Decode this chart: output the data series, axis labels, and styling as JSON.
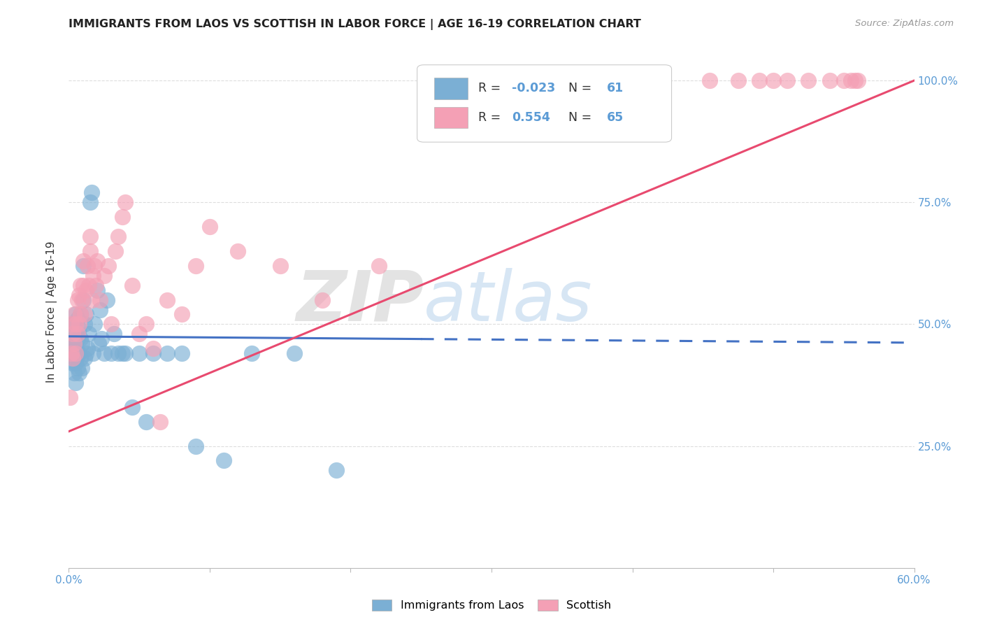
{
  "title": "IMMIGRANTS FROM LAOS VS SCOTTISH IN LABOR FORCE | AGE 16-19 CORRELATION CHART",
  "source": "Source: ZipAtlas.com",
  "ylabel": "In Labor Force | Age 16-19",
  "xlim": [
    0.0,
    0.6
  ],
  "ylim": [
    0.0,
    1.05
  ],
  "xtick_labels": [
    "0.0%",
    "",
    "",
    "",
    "",
    "",
    "60.0%"
  ],
  "xtick_values": [
    0.0,
    0.1,
    0.2,
    0.3,
    0.4,
    0.5,
    0.6
  ],
  "ytick_labels": [
    "25.0%",
    "50.0%",
    "75.0%",
    "100.0%"
  ],
  "ytick_values": [
    0.25,
    0.5,
    0.75,
    1.0
  ],
  "blue_color": "#7bafd4",
  "pink_color": "#f4a0b5",
  "blue_line_color": "#4472c4",
  "pink_line_color": "#e84a6f",
  "legend_R_blue": "-0.023",
  "legend_N_blue": "61",
  "legend_R_pink": "0.554",
  "legend_N_pink": "65",
  "watermark_text": "ZIPatlas",
  "background_color": "#ffffff",
  "grid_color": "#dddddd",
  "blue_scatter_x": [
    0.001,
    0.002,
    0.002,
    0.003,
    0.003,
    0.003,
    0.004,
    0.004,
    0.004,
    0.004,
    0.005,
    0.005,
    0.005,
    0.005,
    0.005,
    0.006,
    0.006,
    0.006,
    0.006,
    0.007,
    0.007,
    0.007,
    0.008,
    0.008,
    0.008,
    0.009,
    0.009,
    0.01,
    0.01,
    0.011,
    0.011,
    0.012,
    0.012,
    0.013,
    0.014,
    0.015,
    0.016,
    0.017,
    0.018,
    0.02,
    0.021,
    0.022,
    0.023,
    0.025,
    0.027,
    0.03,
    0.032,
    0.035,
    0.038,
    0.04,
    0.045,
    0.05,
    0.055,
    0.06,
    0.07,
    0.08,
    0.09,
    0.11,
    0.13,
    0.16,
    0.19
  ],
  "blue_scatter_y": [
    0.45,
    0.44,
    0.48,
    0.42,
    0.46,
    0.5,
    0.4,
    0.43,
    0.46,
    0.5,
    0.38,
    0.42,
    0.45,
    0.48,
    0.52,
    0.41,
    0.44,
    0.47,
    0.51,
    0.4,
    0.44,
    0.49,
    0.43,
    0.47,
    0.52,
    0.41,
    0.46,
    0.55,
    0.62,
    0.43,
    0.5,
    0.44,
    0.52,
    0.45,
    0.48,
    0.75,
    0.77,
    0.44,
    0.5,
    0.57,
    0.46,
    0.53,
    0.47,
    0.44,
    0.55,
    0.44,
    0.48,
    0.44,
    0.44,
    0.44,
    0.33,
    0.44,
    0.3,
    0.44,
    0.44,
    0.44,
    0.25,
    0.22,
    0.44,
    0.44,
    0.2
  ],
  "pink_scatter_x": [
    0.001,
    0.002,
    0.002,
    0.003,
    0.003,
    0.004,
    0.004,
    0.005,
    0.005,
    0.006,
    0.006,
    0.007,
    0.007,
    0.008,
    0.008,
    0.009,
    0.01,
    0.01,
    0.011,
    0.012,
    0.013,
    0.014,
    0.015,
    0.015,
    0.016,
    0.017,
    0.018,
    0.019,
    0.02,
    0.022,
    0.025,
    0.028,
    0.03,
    0.033,
    0.035,
    0.038,
    0.04,
    0.045,
    0.05,
    0.055,
    0.06,
    0.065,
    0.07,
    0.08,
    0.09,
    0.1,
    0.12,
    0.15,
    0.18,
    0.22,
    0.28,
    0.35,
    0.39,
    0.42,
    0.455,
    0.475,
    0.49,
    0.5,
    0.51,
    0.525,
    0.54,
    0.55,
    0.555,
    0.558,
    0.56
  ],
  "pink_scatter_y": [
    0.35,
    0.44,
    0.5,
    0.43,
    0.48,
    0.46,
    0.52,
    0.44,
    0.5,
    0.48,
    0.55,
    0.5,
    0.56,
    0.52,
    0.58,
    0.55,
    0.58,
    0.63,
    0.52,
    0.57,
    0.62,
    0.58,
    0.65,
    0.68,
    0.55,
    0.6,
    0.62,
    0.58,
    0.63,
    0.55,
    0.6,
    0.62,
    0.5,
    0.65,
    0.68,
    0.72,
    0.75,
    0.58,
    0.48,
    0.5,
    0.45,
    0.3,
    0.55,
    0.52,
    0.62,
    0.7,
    0.65,
    0.62,
    0.55,
    0.62,
    1.0,
    1.0,
    1.0,
    1.0,
    1.0,
    1.0,
    1.0,
    1.0,
    1.0,
    1.0,
    1.0,
    1.0,
    1.0,
    1.0,
    1.0
  ]
}
